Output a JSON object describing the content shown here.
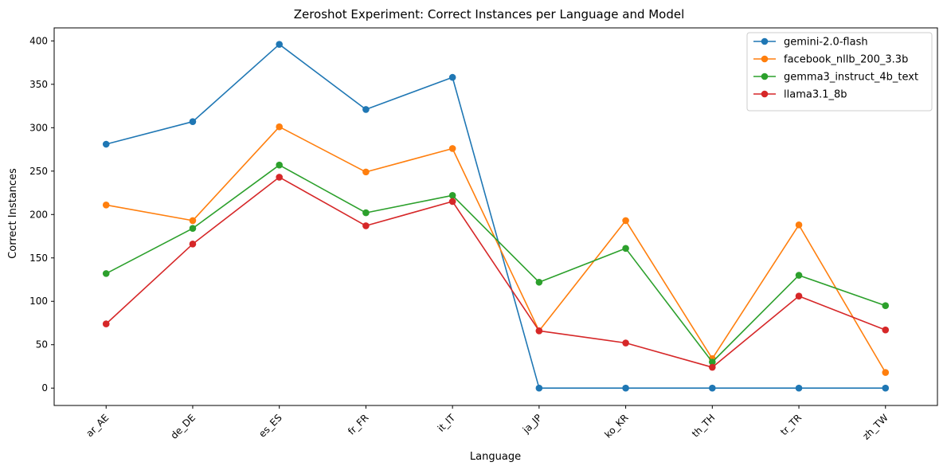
{
  "chart_data": {
    "type": "line",
    "title": "Zeroshot Experiment: Correct Instances per Language and Model",
    "xlabel": "Language",
    "ylabel": "Correct Instances",
    "categories": [
      "ar_AE",
      "de_DE",
      "es_ES",
      "fr_FR",
      "it_IT",
      "ja_JP",
      "ko_KR",
      "th_TH",
      "tr_TR",
      "zh_TW"
    ],
    "ylim": [
      -20,
      415
    ],
    "yticks": [
      0,
      50,
      100,
      150,
      200,
      250,
      300,
      350,
      400
    ],
    "grid": false,
    "legend_position": "top-right",
    "series": [
      {
        "name": "gemini-2.0-flash",
        "color": "#1f77b4",
        "values": [
          281,
          307,
          396,
          321,
          358,
          0,
          0,
          0,
          0,
          0
        ]
      },
      {
        "name": "facebook_nllb_200_3.3b",
        "color": "#ff7f0e",
        "values": [
          211,
          193,
          301,
          249,
          276,
          66,
          193,
          34,
          188,
          18
        ]
      },
      {
        "name": "gemma3_instruct_4b_text",
        "color": "#2ca02c",
        "values": [
          132,
          184,
          257,
          202,
          222,
          122,
          161,
          30,
          130,
          95
        ]
      },
      {
        "name": "llama3.1_8b",
        "color": "#d62728",
        "values": [
          74,
          166,
          243,
          187,
          215,
          66,
          52,
          24,
          106,
          67
        ]
      }
    ]
  }
}
